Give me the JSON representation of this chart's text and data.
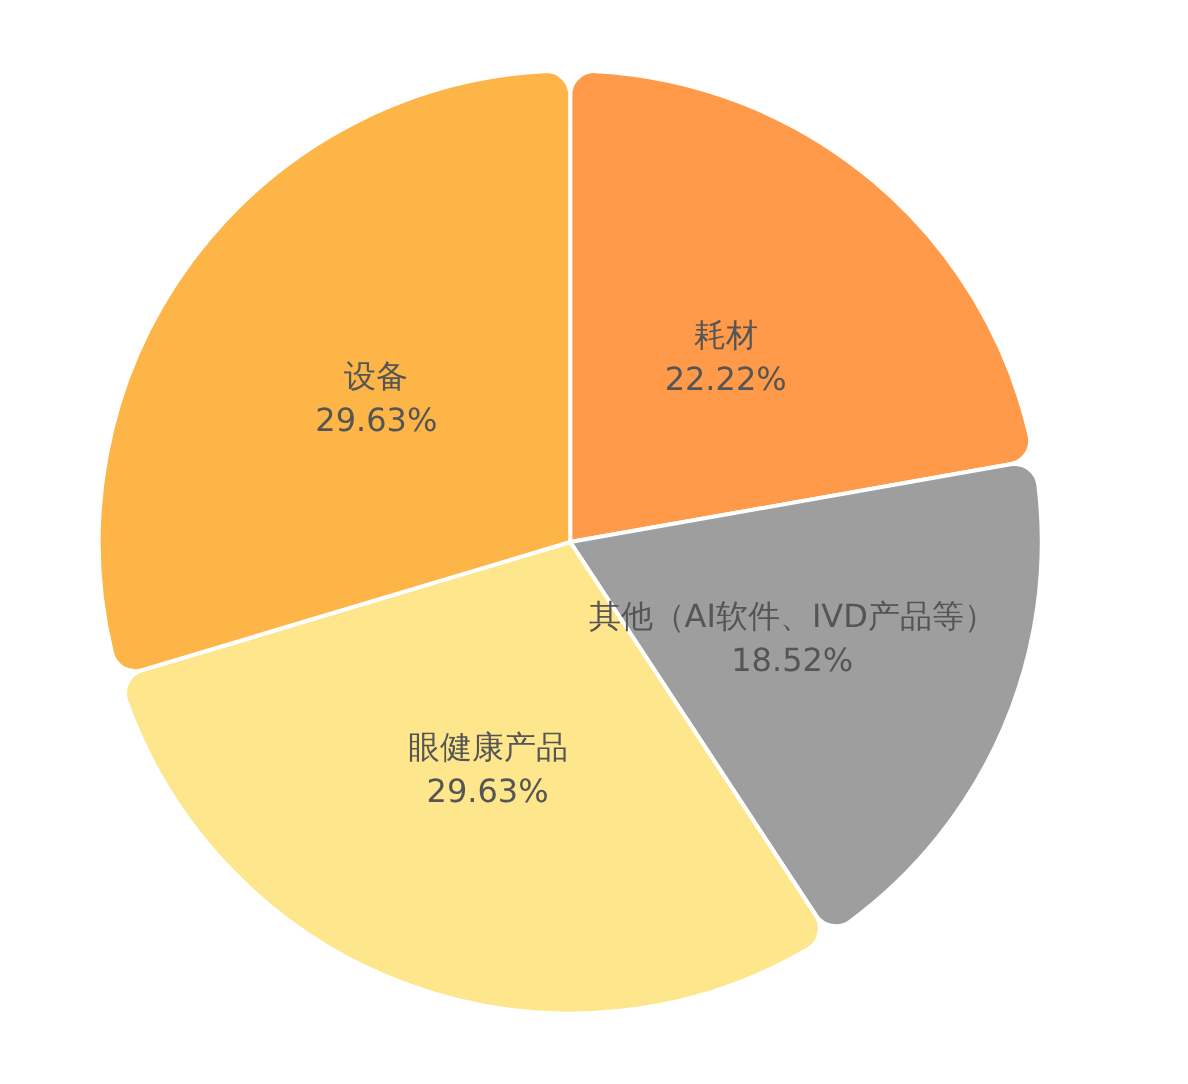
{
  "chart_data": {
    "type": "pie",
    "categories": [
      "耗材",
      "其他（AI软件、IVD产品等）",
      "眼健康产品",
      "设备"
    ],
    "values": [
      22.22,
      18.52,
      29.63,
      29.63
    ],
    "colors": [
      "#fe9a4a",
      "#9e9e9e",
      "#fde68b",
      "#fdb547"
    ],
    "value_labels": [
      "22.22%",
      "18.52%",
      "29.63%",
      "29.63%"
    ],
    "legend": false
  }
}
